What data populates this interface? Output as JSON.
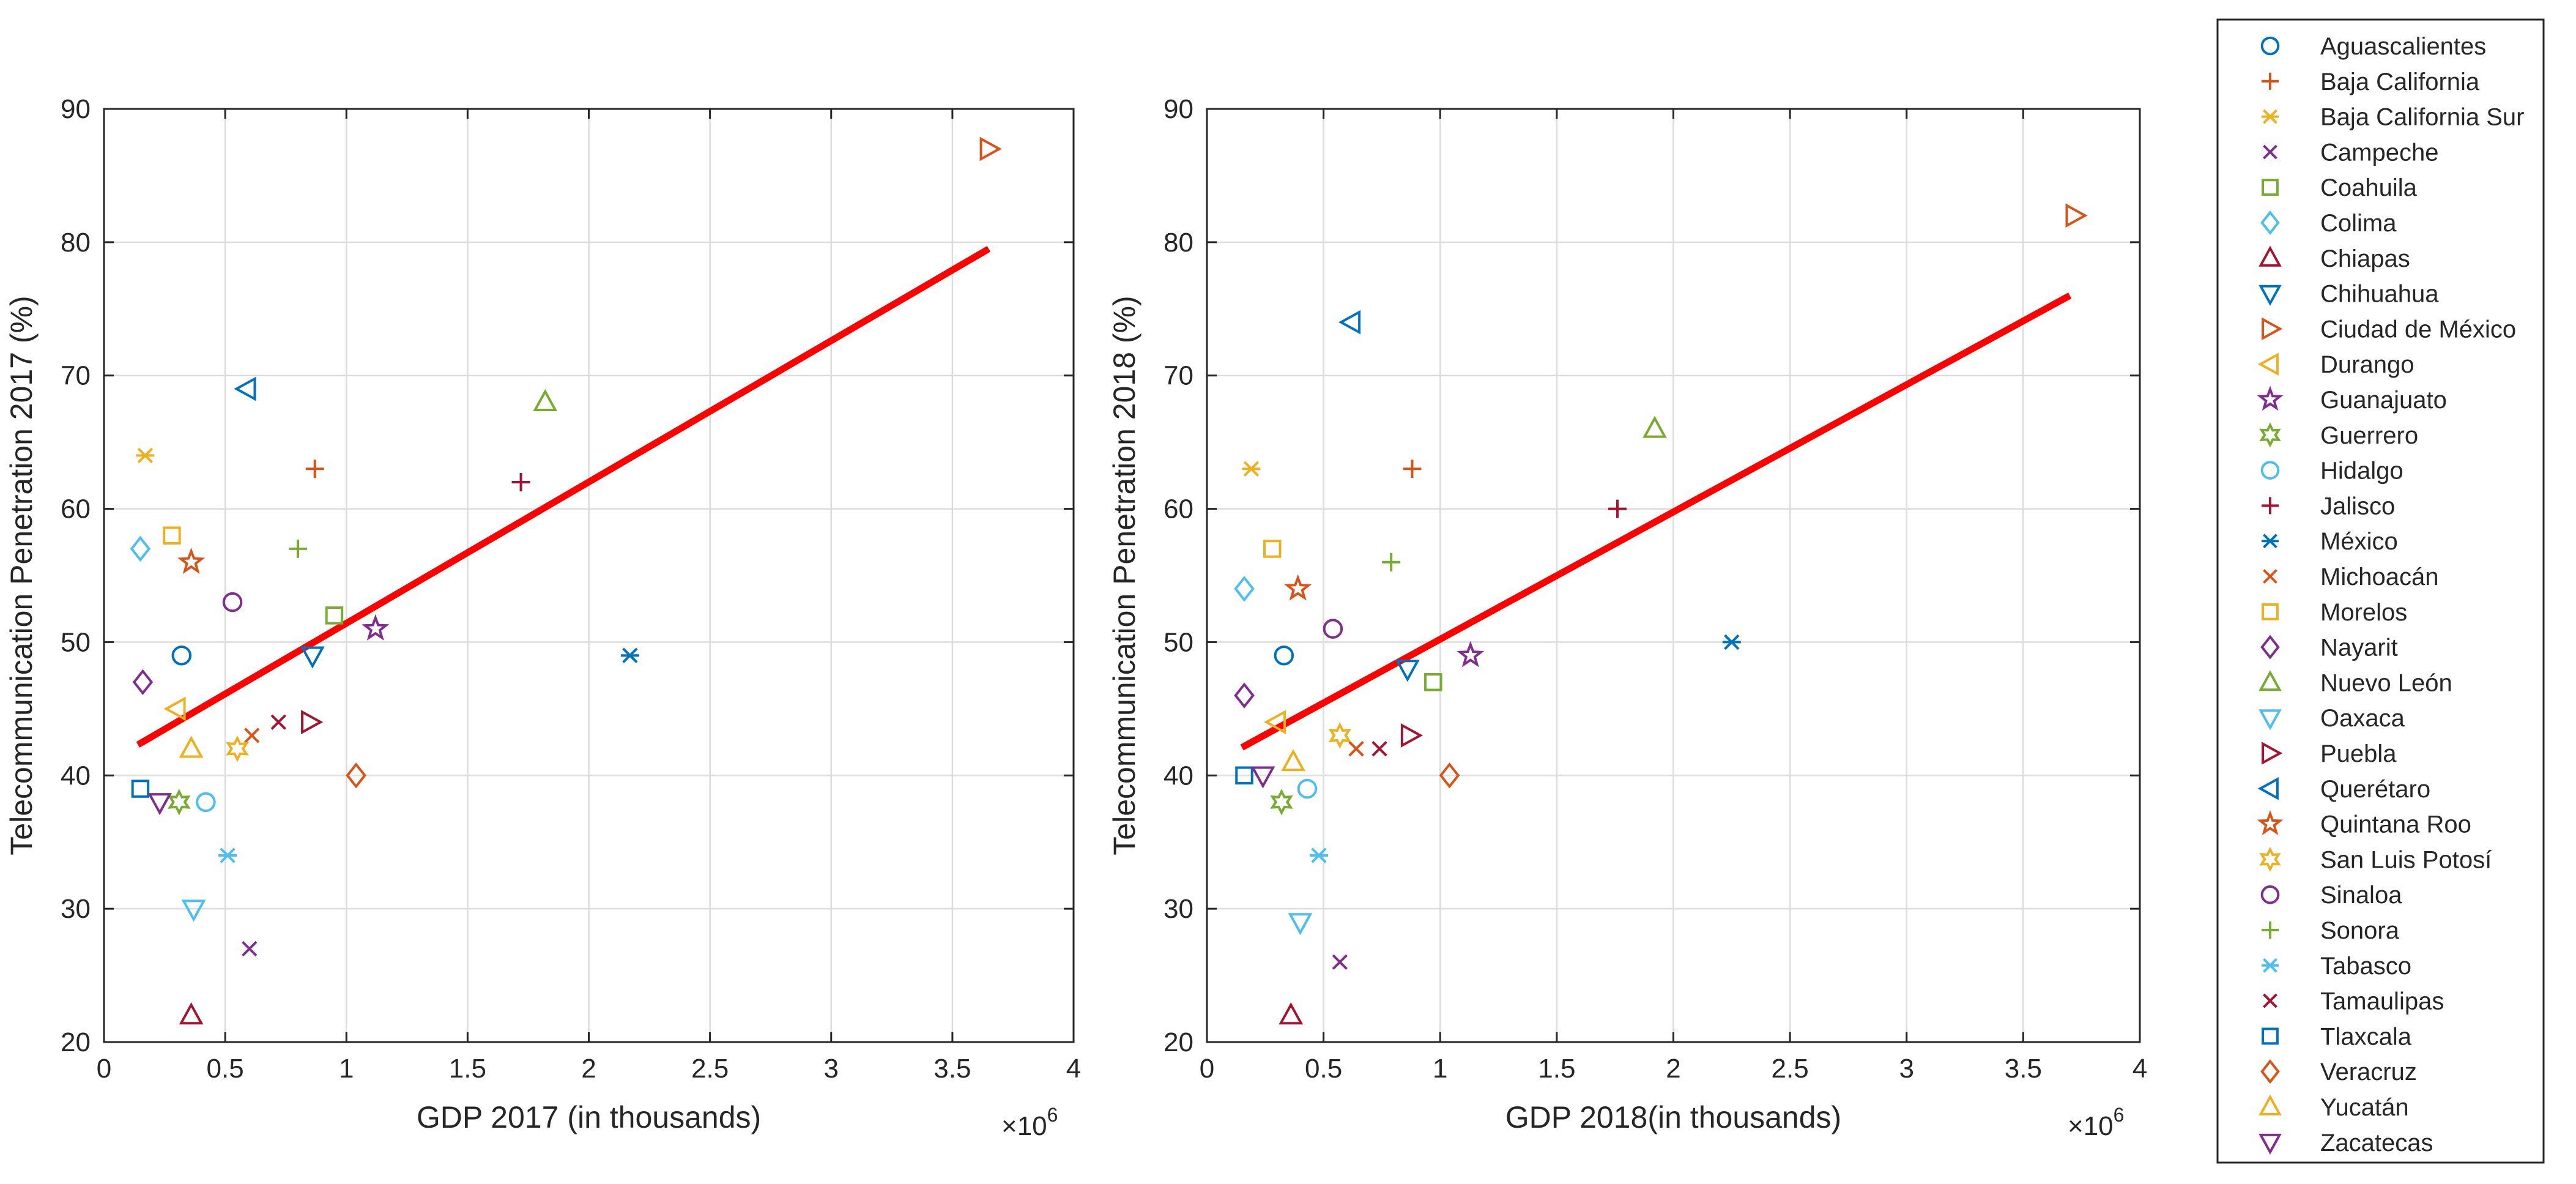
{
  "figure": {
    "legend_entries": [
      {
        "name": "Aguascalientes",
        "marker": "circle-marker",
        "color": "#0072BD"
      },
      {
        "name": "Baja California",
        "marker": "plus-marker",
        "color": "#D95319"
      },
      {
        "name": "Baja California Sur",
        "marker": "asterisk-marker",
        "color": "#EDB120"
      },
      {
        "name": "Campeche",
        "marker": "cross-marker",
        "color": "#7E2F8E"
      },
      {
        "name": "Coahuila",
        "marker": "square-marker",
        "color": "#77AC30"
      },
      {
        "name": "Colima",
        "marker": "diamond-marker",
        "color": "#4DBEEE"
      },
      {
        "name": "Chiapas",
        "marker": "triangle-up-marker",
        "color": "#A2142F"
      },
      {
        "name": "Chihuahua",
        "marker": "triangle-down-marker",
        "color": "#0072BD"
      },
      {
        "name": "Ciudad de México",
        "marker": "triangle-right-marker",
        "color": "#D95319"
      },
      {
        "name": "Durango",
        "marker": "triangle-left-marker",
        "color": "#EDB120"
      },
      {
        "name": "Guanajuato",
        "marker": "pentagram-marker",
        "color": "#7E2F8E"
      },
      {
        "name": "Guerrero",
        "marker": "hexagram-marker",
        "color": "#77AC30"
      },
      {
        "name": "Hidalgo",
        "marker": "circle-marker",
        "color": "#4DBEEE"
      },
      {
        "name": "Jalisco",
        "marker": "plus-marker",
        "color": "#A2142F"
      },
      {
        "name": "México",
        "marker": "asterisk-marker",
        "color": "#0072BD"
      },
      {
        "name": "Michoacán",
        "marker": "cross-marker",
        "color": "#D95319"
      },
      {
        "name": "Morelos",
        "marker": "square-marker",
        "color": "#EDB120"
      },
      {
        "name": "Nayarit",
        "marker": "diamond-marker",
        "color": "#7E2F8E"
      },
      {
        "name": "Nuevo León",
        "marker": "triangle-up-marker",
        "color": "#77AC30"
      },
      {
        "name": "Oaxaca",
        "marker": "triangle-down-marker",
        "color": "#4DBEEE"
      },
      {
        "name": "Puebla",
        "marker": "triangle-right-marker",
        "color": "#A2142F"
      },
      {
        "name": "Querétaro",
        "marker": "triangle-left-marker",
        "color": "#0072BD"
      },
      {
        "name": "Quintana Roo",
        "marker": "pentagram-marker",
        "color": "#D95319"
      },
      {
        "name": "San Luis Potosí",
        "marker": "hexagram-marker",
        "color": "#EDB120"
      },
      {
        "name": "Sinaloa",
        "marker": "circle-marker",
        "color": "#7E2F8E"
      },
      {
        "name": "Sonora",
        "marker": "plus-marker",
        "color": "#77AC30"
      },
      {
        "name": "Tabasco",
        "marker": "asterisk-marker",
        "color": "#4DBEEE"
      },
      {
        "name": "Tamaulipas",
        "marker": "cross-marker",
        "color": "#A2142F"
      },
      {
        "name": "Tlaxcala",
        "marker": "square-marker",
        "color": "#0072BD"
      },
      {
        "name": "Veracruz",
        "marker": "diamond-marker",
        "color": "#D95319"
      },
      {
        "name": "Yucatán",
        "marker": "triangle-up-marker",
        "color": "#EDB120"
      },
      {
        "name": "Zacatecas",
        "marker": "triangle-down-marker",
        "color": "#7E2F8E"
      }
    ]
  },
  "chart_data": [
    {
      "type": "scatter",
      "title": "",
      "xlabel": "GDP 2017 (in thousands)",
      "ylabel": "Telecommunication Penetration 2017 (%)",
      "x_exponent_label": "×10",
      "x_exponent_power": "6",
      "xlim": [
        0,
        4
      ],
      "ylim": [
        20,
        90
      ],
      "xticks": [
        0,
        0.5,
        1,
        1.5,
        2,
        2.5,
        3,
        3.5,
        4
      ],
      "xtick_labels": [
        "0",
        "0.5",
        "1",
        "1.5",
        "2",
        "2.5",
        "3",
        "3.5",
        "4"
      ],
      "yticks": [
        20,
        30,
        40,
        50,
        60,
        70,
        80,
        90
      ],
      "ytick_labels": [
        "20",
        "30",
        "40",
        "50",
        "60",
        "70",
        "80",
        "90"
      ],
      "grid": true,
      "points": [
        {
          "state": "Aguascalientes",
          "x": 0.32,
          "y": 49
        },
        {
          "state": "Baja California",
          "x": 0.87,
          "y": 63
        },
        {
          "state": "Baja California Sur",
          "x": 0.17,
          "y": 64
        },
        {
          "state": "Campeche",
          "x": 0.6,
          "y": 27
        },
        {
          "state": "Coahuila",
          "x": 0.95,
          "y": 52
        },
        {
          "state": "Colima",
          "x": 0.15,
          "y": 57
        },
        {
          "state": "Chiapas",
          "x": 0.36,
          "y": 22
        },
        {
          "state": "Chihuahua",
          "x": 0.86,
          "y": 49
        },
        {
          "state": "Ciudad de México",
          "x": 3.65,
          "y": 87
        },
        {
          "state": "Durango",
          "x": 0.3,
          "y": 45
        },
        {
          "state": "Guanajuato",
          "x": 1.12,
          "y": 51
        },
        {
          "state": "Guerrero",
          "x": 0.31,
          "y": 38
        },
        {
          "state": "Hidalgo",
          "x": 0.42,
          "y": 38
        },
        {
          "state": "Jalisco",
          "x": 1.72,
          "y": 62
        },
        {
          "state": "México",
          "x": 2.17,
          "y": 49
        },
        {
          "state": "Michoacán",
          "x": 0.61,
          "y": 43
        },
        {
          "state": "Morelos",
          "x": 0.28,
          "y": 58
        },
        {
          "state": "Nayarit",
          "x": 0.16,
          "y": 47
        },
        {
          "state": "Nuevo León",
          "x": 1.82,
          "y": 68
        },
        {
          "state": "Oaxaca",
          "x": 0.37,
          "y": 30
        },
        {
          "state": "Puebla",
          "x": 0.85,
          "y": 44
        },
        {
          "state": "Querétaro",
          "x": 0.59,
          "y": 69
        },
        {
          "state": "Quintana Roo",
          "x": 0.36,
          "y": 56
        },
        {
          "state": "San Luis Potosí",
          "x": 0.55,
          "y": 42
        },
        {
          "state": "Sinaloa",
          "x": 0.53,
          "y": 53
        },
        {
          "state": "Sonora",
          "x": 0.8,
          "y": 57
        },
        {
          "state": "Tabasco",
          "x": 0.51,
          "y": 34
        },
        {
          "state": "Tamaulipas",
          "x": 0.72,
          "y": 44
        },
        {
          "state": "Tlaxcala",
          "x": 0.15,
          "y": 39
        },
        {
          "state": "Veracruz",
          "x": 1.04,
          "y": 40
        },
        {
          "state": "Yucatán",
          "x": 0.36,
          "y": 42
        },
        {
          "state": "Zacatecas",
          "x": 0.23,
          "y": 38
        }
      ],
      "fit_line": {
        "color": "#FF0000",
        "x": [
          0.14,
          3.65
        ],
        "y": [
          42.3,
          79.5
        ]
      }
    },
    {
      "type": "scatter",
      "title": "",
      "xlabel": "GDP 2018(in thousands)",
      "ylabel": "Telecommunication Penetration 2018 (%)",
      "x_exponent_label": "×10",
      "x_exponent_power": "6",
      "xlim": [
        0,
        4
      ],
      "ylim": [
        20,
        90
      ],
      "xticks": [
        0,
        0.5,
        1,
        1.5,
        2,
        2.5,
        3,
        3.5,
        4
      ],
      "xtick_labels": [
        "0",
        "0.5",
        "1",
        "1.5",
        "2",
        "2.5",
        "3",
        "3.5",
        "4"
      ],
      "yticks": [
        20,
        30,
        40,
        50,
        60,
        70,
        80,
        90
      ],
      "ytick_labels": [
        "20",
        "30",
        "40",
        "50",
        "60",
        "70",
        "80",
        "90"
      ],
      "grid": true,
      "points": [
        {
          "state": "Aguascalientes",
          "x": 0.33,
          "y": 49
        },
        {
          "state": "Baja California",
          "x": 0.88,
          "y": 63
        },
        {
          "state": "Baja California Sur",
          "x": 0.19,
          "y": 63
        },
        {
          "state": "Campeche",
          "x": 0.57,
          "y": 26
        },
        {
          "state": "Coahuila",
          "x": 0.97,
          "y": 47
        },
        {
          "state": "Colima",
          "x": 0.16,
          "y": 54
        },
        {
          "state": "Chiapas",
          "x": 0.36,
          "y": 22
        },
        {
          "state": "Chihuahua",
          "x": 0.86,
          "y": 48
        },
        {
          "state": "Ciudad de México",
          "x": 3.72,
          "y": 82
        },
        {
          "state": "Durango",
          "x": 0.3,
          "y": 44
        },
        {
          "state": "Guanajuato",
          "x": 1.13,
          "y": 49
        },
        {
          "state": "Guerrero",
          "x": 0.32,
          "y": 38
        },
        {
          "state": "Hidalgo",
          "x": 0.43,
          "y": 39
        },
        {
          "state": "Jalisco",
          "x": 1.76,
          "y": 60
        },
        {
          "state": "México",
          "x": 2.25,
          "y": 50
        },
        {
          "state": "Michoacán",
          "x": 0.64,
          "y": 42
        },
        {
          "state": "Morelos",
          "x": 0.28,
          "y": 57
        },
        {
          "state": "Nayarit",
          "x": 0.16,
          "y": 46
        },
        {
          "state": "Nuevo León",
          "x": 1.92,
          "y": 66
        },
        {
          "state": "Oaxaca",
          "x": 0.4,
          "y": 29
        },
        {
          "state": "Puebla",
          "x": 0.87,
          "y": 43
        },
        {
          "state": "Querétaro",
          "x": 0.62,
          "y": 74
        },
        {
          "state": "Quintana Roo",
          "x": 0.39,
          "y": 54
        },
        {
          "state": "San Luis Potosí",
          "x": 0.57,
          "y": 43
        },
        {
          "state": "Sinaloa",
          "x": 0.54,
          "y": 51
        },
        {
          "state": "Sonora",
          "x": 0.79,
          "y": 56
        },
        {
          "state": "Tabasco",
          "x": 0.48,
          "y": 34
        },
        {
          "state": "Tamaulipas",
          "x": 0.74,
          "y": 42
        },
        {
          "state": "Tlaxcala",
          "x": 0.16,
          "y": 40
        },
        {
          "state": "Veracruz",
          "x": 1.04,
          "y": 40
        },
        {
          "state": "Yucatán",
          "x": 0.37,
          "y": 41
        },
        {
          "state": "Zacatecas",
          "x": 0.24,
          "y": 40
        }
      ],
      "fit_line": {
        "color": "#FF0000",
        "x": [
          0.15,
          3.7
        ],
        "y": [
          42.1,
          76.0
        ]
      }
    }
  ]
}
